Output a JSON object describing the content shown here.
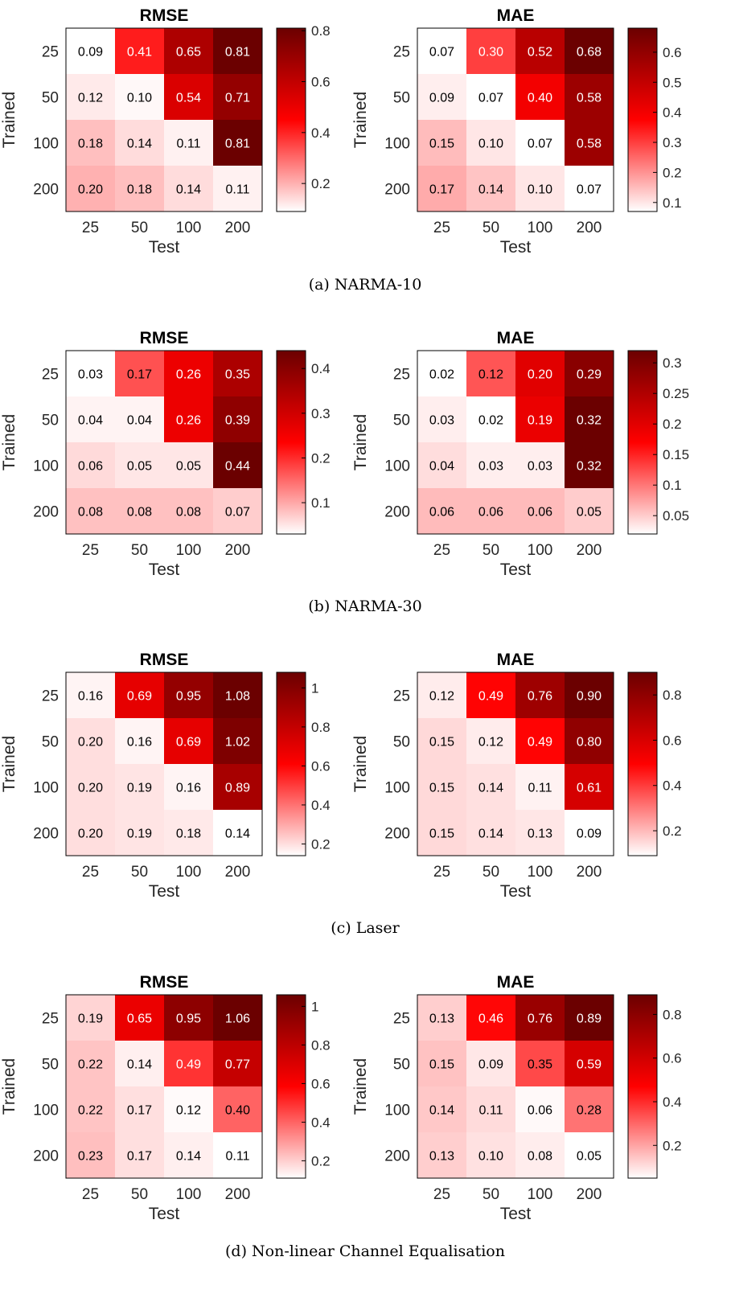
{
  "colors": {
    "low": "#ffffff",
    "mid": "#ff0000",
    "high": "#6b0000",
    "border": "#000000"
  },
  "rows": [
    {
      "caption": "(a) NARMA-10",
      "charts": [
        {
          "type": "heatmap",
          "title": "RMSE",
          "xlabel": "Test",
          "ylabel": "Trained",
          "x_categories": [
            "25",
            "50",
            "100",
            "200"
          ],
          "y_categories": [
            "25",
            "50",
            "100",
            "200"
          ],
          "values": [
            [
              0.09,
              0.41,
              0.65,
              0.81
            ],
            [
              0.12,
              0.1,
              0.54,
              0.71
            ],
            [
              0.18,
              0.14,
              0.11,
              0.81
            ],
            [
              0.2,
              0.18,
              0.14,
              0.11
            ]
          ],
          "clim": [
            0.09,
            0.81
          ],
          "colorbar_ticks": [
            0.2,
            0.4,
            0.6,
            0.8
          ],
          "colorbar_labels": [
            "0.2",
            "0.4",
            "0.6",
            "0.8"
          ]
        },
        {
          "type": "heatmap",
          "title": "MAE",
          "xlabel": "Test",
          "ylabel": "Trained",
          "x_categories": [
            "25",
            "50",
            "100",
            "200"
          ],
          "y_categories": [
            "25",
            "50",
            "100",
            "200"
          ],
          "values": [
            [
              0.07,
              0.3,
              0.52,
              0.68
            ],
            [
              0.09,
              0.07,
              0.4,
              0.58
            ],
            [
              0.15,
              0.1,
              0.07,
              0.58
            ],
            [
              0.17,
              0.14,
              0.1,
              0.07
            ]
          ],
          "clim": [
            0.07,
            0.68
          ],
          "colorbar_ticks": [
            0.1,
            0.2,
            0.3,
            0.4,
            0.5,
            0.6
          ],
          "colorbar_labels": [
            "0.1",
            "0.2",
            "0.3",
            "0.4",
            "0.5",
            "0.6"
          ]
        }
      ]
    },
    {
      "caption": "(b) NARMA-30",
      "charts": [
        {
          "type": "heatmap",
          "title": "RMSE",
          "xlabel": "Test",
          "ylabel": "Trained",
          "x_categories": [
            "25",
            "50",
            "100",
            "200"
          ],
          "y_categories": [
            "25",
            "50",
            "100",
            "200"
          ],
          "values": [
            [
              0.03,
              0.17,
              0.26,
              0.35
            ],
            [
              0.04,
              0.04,
              0.26,
              0.39
            ],
            [
              0.06,
              0.05,
              0.05,
              0.44
            ],
            [
              0.08,
              0.08,
              0.08,
              0.07
            ]
          ],
          "clim": [
            0.03,
            0.44
          ],
          "colorbar_ticks": [
            0.1,
            0.2,
            0.3,
            0.4
          ],
          "colorbar_labels": [
            "0.1",
            "0.2",
            "0.3",
            "0.4"
          ]
        },
        {
          "type": "heatmap",
          "title": "MAE",
          "xlabel": "Test",
          "ylabel": "Trained",
          "x_categories": [
            "25",
            "50",
            "100",
            "200"
          ],
          "y_categories": [
            "25",
            "50",
            "100",
            "200"
          ],
          "values": [
            [
              0.02,
              0.12,
              0.2,
              0.29
            ],
            [
              0.03,
              0.02,
              0.19,
              0.32
            ],
            [
              0.04,
              0.03,
              0.03,
              0.32
            ],
            [
              0.06,
              0.06,
              0.06,
              0.05
            ]
          ],
          "clim": [
            0.02,
            0.32
          ],
          "colorbar_ticks": [
            0.05,
            0.1,
            0.15,
            0.2,
            0.25,
            0.3
          ],
          "colorbar_labels": [
            "0.05",
            "0.1",
            "0.15",
            "0.2",
            "0.25",
            "0.3"
          ]
        }
      ]
    },
    {
      "caption": "(c) Laser",
      "charts": [
        {
          "type": "heatmap",
          "title": "RMSE",
          "xlabel": "Test",
          "ylabel": "Trained",
          "x_categories": [
            "25",
            "50",
            "100",
            "200"
          ],
          "y_categories": [
            "25",
            "50",
            "100",
            "200"
          ],
          "values": [
            [
              0.16,
              0.69,
              0.95,
              1.08
            ],
            [
              0.2,
              0.16,
              0.69,
              1.02
            ],
            [
              0.2,
              0.19,
              0.16,
              0.89
            ],
            [
              0.2,
              0.19,
              0.18,
              0.14
            ]
          ],
          "clim": [
            0.14,
            1.08
          ],
          "colorbar_ticks": [
            0.2,
            0.4,
            0.6,
            0.8,
            1.0
          ],
          "colorbar_labels": [
            "0.2",
            "0.4",
            "0.6",
            "0.8",
            "1"
          ]
        },
        {
          "type": "heatmap",
          "title": "MAE",
          "xlabel": "Test",
          "ylabel": "Trained",
          "x_categories": [
            "25",
            "50",
            "100",
            "200"
          ],
          "y_categories": [
            "25",
            "50",
            "100",
            "200"
          ],
          "values": [
            [
              0.12,
              0.49,
              0.76,
              0.9
            ],
            [
              0.15,
              0.12,
              0.49,
              0.8
            ],
            [
              0.15,
              0.14,
              0.11,
              0.61
            ],
            [
              0.15,
              0.14,
              0.13,
              0.09
            ]
          ],
          "clim": [
            0.09,
            0.9
          ],
          "colorbar_ticks": [
            0.2,
            0.4,
            0.6,
            0.8
          ],
          "colorbar_labels": [
            "0.2",
            "0.4",
            "0.6",
            "0.8"
          ]
        }
      ]
    },
    {
      "caption": "(d) Non-linear Channel Equalisation",
      "charts": [
        {
          "type": "heatmap",
          "title": "RMSE",
          "xlabel": "Test",
          "ylabel": "Trained",
          "x_categories": [
            "25",
            "50",
            "100",
            "200"
          ],
          "y_categories": [
            "25",
            "50",
            "100",
            "200"
          ],
          "values": [
            [
              0.19,
              0.65,
              0.95,
              1.06
            ],
            [
              0.22,
              0.14,
              0.49,
              0.77
            ],
            [
              0.22,
              0.17,
              0.12,
              0.4
            ],
            [
              0.23,
              0.17,
              0.14,
              0.11
            ]
          ],
          "clim": [
            0.11,
            1.06
          ],
          "colorbar_ticks": [
            0.2,
            0.4,
            0.6,
            0.8,
            1.0
          ],
          "colorbar_labels": [
            "0.2",
            "0.4",
            "0.6",
            "0.8",
            "1"
          ]
        },
        {
          "type": "heatmap",
          "title": "MAE",
          "xlabel": "Test",
          "ylabel": "Trained",
          "x_categories": [
            "25",
            "50",
            "100",
            "200"
          ],
          "y_categories": [
            "25",
            "50",
            "100",
            "200"
          ],
          "values": [
            [
              0.13,
              0.46,
              0.76,
              0.89
            ],
            [
              0.15,
              0.09,
              0.35,
              0.59
            ],
            [
              0.14,
              0.11,
              0.06,
              0.28
            ],
            [
              0.13,
              0.1,
              0.08,
              0.05
            ]
          ],
          "clim": [
            0.05,
            0.89
          ],
          "colorbar_ticks": [
            0.2,
            0.4,
            0.6,
            0.8
          ],
          "colorbar_labels": [
            "0.2",
            "0.4",
            "0.6",
            "0.8"
          ]
        }
      ]
    }
  ]
}
